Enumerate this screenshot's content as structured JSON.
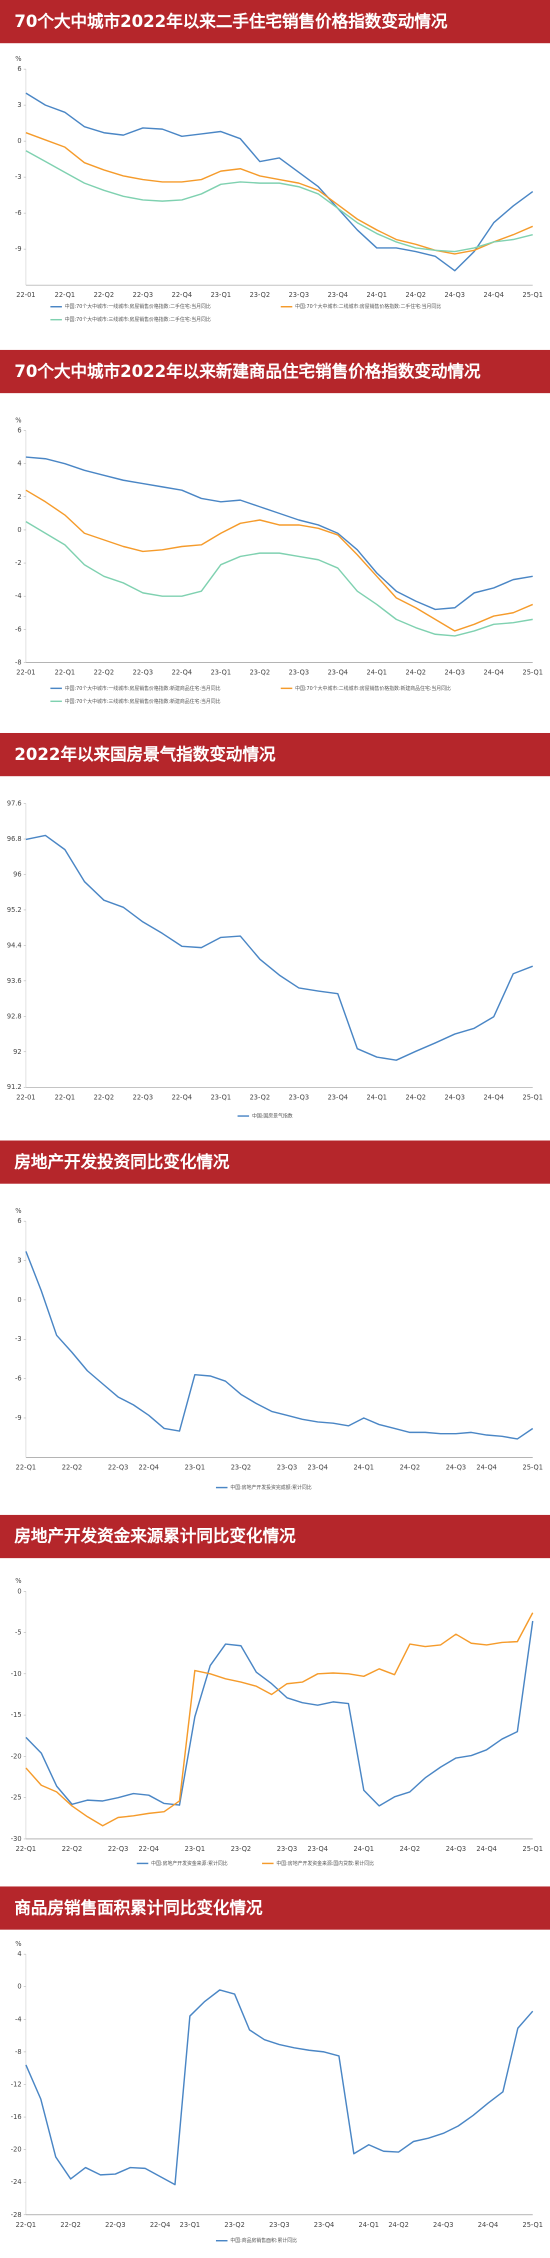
{
  "chart_data": [
    {
      "type": "line",
      "title": "70个大中城市2022年以来二手住宅销售价格指数变动情况",
      "unit": "%",
      "categories": [
        "22-01",
        null,
        "22-Q1",
        null,
        "22-Q2",
        null,
        "22-Q3",
        null,
        "22-Q4",
        null,
        "23-Q1",
        null,
        "23-Q2",
        null,
        "23-Q3",
        null,
        "23-Q4",
        null,
        "24-Q1",
        null,
        "24-Q2",
        null,
        "24-Q3",
        null,
        "24-Q4",
        null,
        "25-Q1"
      ],
      "series": [
        {
          "name": "中国:70个大中城市:一线城市:房屋销售价格指数:二手住宅:当月同比",
          "color": "#4a86c5",
          "values": [
            4.0,
            3.0,
            2.4,
            1.2,
            0.7,
            0.5,
            1.1,
            1.0,
            0.4,
            0.6,
            0.8,
            0.2,
            -1.7,
            -1.4,
            -2.6,
            -3.8,
            -5.6,
            -7.4,
            -8.9,
            -8.9,
            -9.2,
            -9.6,
            -10.8,
            -9.2,
            -6.8,
            -5.4,
            -4.2
          ]
        },
        {
          "name": "中国:70个大中城市:二线城市:房屋销售价格指数:二手住宅:当月同比",
          "color": "#f59b2b",
          "values": [
            0.7,
            0.1,
            -0.5,
            -1.8,
            -2.4,
            -2.9,
            -3.2,
            -3.4,
            -3.4,
            -3.2,
            -2.5,
            -2.3,
            -2.9,
            -3.2,
            -3.5,
            -4.1,
            -5.3,
            -6.5,
            -7.4,
            -8.2,
            -8.6,
            -9.1,
            -9.4,
            -9.1,
            -8.4,
            -7.8,
            -7.1
          ]
        },
        {
          "name": "中国:70个大中城市:三线城市:房屋销售价格指数:二手住宅:当月同比",
          "color": "#7fd1b0",
          "values": [
            -0.8,
            -1.7,
            -2.6,
            -3.5,
            -4.1,
            -4.6,
            -4.9,
            -5.0,
            -4.9,
            -4.4,
            -3.6,
            -3.4,
            -3.5,
            -3.5,
            -3.8,
            -4.4,
            -5.6,
            -6.8,
            -7.7,
            -8.4,
            -8.9,
            -9.1,
            -9.2,
            -8.9,
            -8.4,
            -8.2,
            -7.8
          ]
        }
      ],
      "ylim": [
        -12,
        6
      ],
      "yticks": [
        6,
        3,
        0,
        -3,
        -6,
        -9
      ]
    },
    {
      "type": "line",
      "title": "70个大中城市2022年以来新建商品住宅销售价格指数变动情况",
      "unit": "%",
      "categories": [
        "22-01",
        null,
        "22-Q1",
        null,
        "22-Q2",
        null,
        "22-Q3",
        null,
        "22-Q4",
        null,
        "23-Q1",
        null,
        "23-Q2",
        null,
        "23-Q3",
        null,
        "23-Q4",
        null,
        "24-Q1",
        null,
        "24-Q2",
        null,
        "24-Q3",
        null,
        "24-Q4",
        null,
        "25-Q1"
      ],
      "series": [
        {
          "name": "中国:70个大中城市:一线城市:房屋销售价格指数:新建商品住宅:当月同比",
          "color": "#4a86c5",
          "values": [
            4.4,
            4.3,
            4.0,
            3.6,
            3.3,
            3.0,
            2.8,
            2.6,
            2.4,
            1.9,
            1.7,
            1.8,
            1.4,
            1.0,
            0.6,
            0.3,
            -0.2,
            -1.2,
            -2.6,
            -3.7,
            -4.3,
            -4.8,
            -4.7,
            -3.8,
            -3.5,
            -3.0,
            -2.8
          ]
        },
        {
          "name": "中国:70个大中城市:二线城市:房屋销售价格指数:新建商品住宅:当月同比",
          "color": "#f59b2b",
          "values": [
            2.4,
            1.7,
            0.9,
            -0.2,
            -0.6,
            -1.0,
            -1.3,
            -1.2,
            -1.0,
            -0.9,
            -0.2,
            0.4,
            0.6,
            0.3,
            0.3,
            0.1,
            -0.3,
            -1.5,
            -2.8,
            -4.1,
            -4.7,
            -5.4,
            -6.1,
            -5.7,
            -5.2,
            -5.0,
            -4.5
          ]
        },
        {
          "name": "中国:70个大中城市:三线城市:房屋销售价格指数:新建商品住宅:当月同比",
          "color": "#7fd1b0",
          "values": [
            0.5,
            -0.2,
            -0.9,
            -2.1,
            -2.8,
            -3.2,
            -3.8,
            -4.0,
            -4.0,
            -3.7,
            -2.1,
            -1.6,
            -1.4,
            -1.4,
            -1.6,
            -1.8,
            -2.3,
            -3.7,
            -4.5,
            -5.4,
            -5.9,
            -6.3,
            -6.4,
            -6.1,
            -5.7,
            -5.6,
            -5.4
          ]
        }
      ],
      "ylim": [
        -8,
        6
      ],
      "yticks": [
        6,
        4,
        2,
        0,
        -2,
        -4,
        -6,
        -8
      ]
    },
    {
      "type": "line",
      "title": "2022年以来国房景气指数变动情况",
      "categories": [
        "22-01",
        null,
        "22-Q1",
        null,
        "22-Q2",
        null,
        "22-Q3",
        null,
        "22-Q4",
        null,
        "23-Q1",
        null,
        "23-Q2",
        null,
        "23-Q3",
        null,
        "23-Q4",
        null,
        "24-Q1",
        null,
        "24-Q2",
        null,
        "24-Q3",
        null,
        "24-Q4",
        null,
        "25-Q1"
      ],
      "series": [
        {
          "name": "中国:国房景气指数",
          "color": "#4a86c5",
          "values": [
            96.79,
            96.88,
            96.56,
            95.84,
            95.42,
            95.26,
            94.93,
            94.67,
            94.38,
            94.35,
            94.58,
            94.61,
            94.09,
            93.73,
            93.44,
            93.37,
            93.31,
            92.07,
            91.88,
            91.81,
            92.01,
            92.2,
            92.4,
            92.53,
            92.79,
            93.76,
            93.93
          ]
        }
      ],
      "ylim": [
        91.2,
        97.6
      ],
      "yticks": [
        97.6,
        96.8,
        96,
        95.2,
        94.4,
        93.6,
        92.8,
        92,
        91.2
      ]
    },
    {
      "type": "line",
      "title": "房地产开发投资同比变化情况",
      "unit": "%",
      "categories": [
        "22-Q1",
        null,
        null,
        "22-Q2",
        null,
        null,
        "22-Q3",
        null,
        "22-Q4",
        null,
        null,
        "23-Q1",
        null,
        null,
        "23-Q2",
        null,
        null,
        "23-Q3",
        null,
        "23-Q4",
        null,
        null,
        "24-Q1",
        null,
        null,
        "24-Q2",
        null,
        null,
        "24-Q3",
        null,
        "24-Q4",
        null,
        null,
        "25-Q1"
      ],
      "series": [
        {
          "name": "中国:房地产开发投资完成额:累计同比",
          "color": "#4a86c5",
          "values": [
            3.7,
            0.7,
            -2.7,
            -4.0,
            -5.4,
            -6.4,
            -7.4,
            -8.0,
            -8.8,
            -9.8,
            -10.0,
            -5.7,
            -5.8,
            -6.2,
            -7.2,
            -7.9,
            -8.5,
            -8.8,
            -9.1,
            -9.3,
            -9.4,
            -9.6,
            -9.0,
            -9.5,
            -9.8,
            -10.1,
            -10.1,
            -10.2,
            -10.2,
            -10.1,
            -10.3,
            -10.4,
            -10.6,
            -9.8
          ]
        }
      ],
      "ylim": [
        -12,
        6
      ],
      "yticks": [
        6,
        3,
        0,
        -3,
        -6,
        -9
      ]
    },
    {
      "type": "line",
      "title": "房地产开发资金来源累计同比变化情况",
      "unit": "%",
      "categories": [
        "22-Q1",
        null,
        null,
        "22-Q2",
        null,
        null,
        "22-Q3",
        null,
        "22-Q4",
        null,
        null,
        "23-Q1",
        null,
        null,
        "23-Q2",
        null,
        null,
        "23-Q3",
        null,
        "23-Q4",
        null,
        null,
        "24-Q1",
        null,
        null,
        "24-Q2",
        null,
        null,
        "24-Q3",
        null,
        "24-Q4",
        null,
        null,
        "25-Q1"
      ],
      "series": [
        {
          "name": "中国:房地产开发资金来源:累计同比",
          "color": "#4a86c5",
          "values": [
            -17.7,
            -19.6,
            -23.6,
            -25.8,
            -25.3,
            -25.4,
            -25.0,
            -24.5,
            -24.7,
            -25.7,
            -25.9,
            -15.2,
            -9.0,
            -6.4,
            -6.6,
            -9.8,
            -11.2,
            -12.9,
            -13.5,
            -13.8,
            -13.4,
            -13.6,
            -24.1,
            -26.0,
            -24.9,
            -24.3,
            -22.6,
            -21.3,
            -20.2,
            -19.9,
            -19.2,
            -17.9,
            -17.0,
            -3.6
          ]
        },
        {
          "name": "中国:房地产开发资金来源:国内贷款:累计同比",
          "color": "#f59b2b",
          "values": [
            -21.4,
            -23.5,
            -24.3,
            -26.0,
            -27.3,
            -28.4,
            -27.4,
            -27.2,
            -26.9,
            -26.7,
            -25.4,
            -9.6,
            -10.0,
            -10.6,
            -11.0,
            -11.5,
            -12.5,
            -11.2,
            -11.0,
            -10.0,
            -9.9,
            -10.0,
            -10.3,
            -9.4,
            -10.1,
            -6.4,
            -6.7,
            -6.5,
            -5.2,
            -6.3,
            -6.5,
            -6.2,
            -6.1,
            -2.6
          ]
        }
      ],
      "ylim": [
        -30,
        0
      ],
      "yticks": [
        0,
        -5,
        -10,
        -15,
        -20,
        -25,
        -30
      ]
    },
    {
      "type": "line",
      "title": "商品房销售面积累计同比变化情况",
      "unit": "%",
      "categories": [
        "22-Q1",
        null,
        null,
        "22-Q2",
        null,
        null,
        "22-Q3",
        null,
        null,
        "22-Q4",
        null,
        "23-Q1",
        null,
        null,
        "23-Q2",
        null,
        null,
        "23-Q3",
        null,
        null,
        "23-Q4",
        null,
        null,
        "24-Q1",
        null,
        "24-Q2",
        null,
        null,
        "24-Q3",
        null,
        null,
        "24-Q4",
        null,
        null,
        "25-Q1"
      ],
      "series": [
        {
          "name": "中国:商品房销售面积:累计同比",
          "color": "#4a86c5",
          "values": [
            -9.6,
            -13.8,
            -20.9,
            -23.6,
            -22.2,
            -23.1,
            -23.0,
            -22.2,
            -22.3,
            -23.3,
            -24.3,
            -3.6,
            -1.8,
            -0.4,
            -0.9,
            -5.3,
            -6.5,
            -7.1,
            -7.5,
            -7.8,
            -8.0,
            -8.5,
            -20.5,
            -19.4,
            -20.2,
            -20.3,
            -19.0,
            -18.6,
            -18.0,
            -17.1,
            -15.8,
            -14.3,
            -12.9,
            -5.1,
            -3.0
          ]
        }
      ],
      "ylim": [
        -28,
        4
      ],
      "yticks": [
        4,
        0,
        -4,
        -8,
        -12,
        -16,
        -20,
        -24,
        -28
      ]
    }
  ]
}
